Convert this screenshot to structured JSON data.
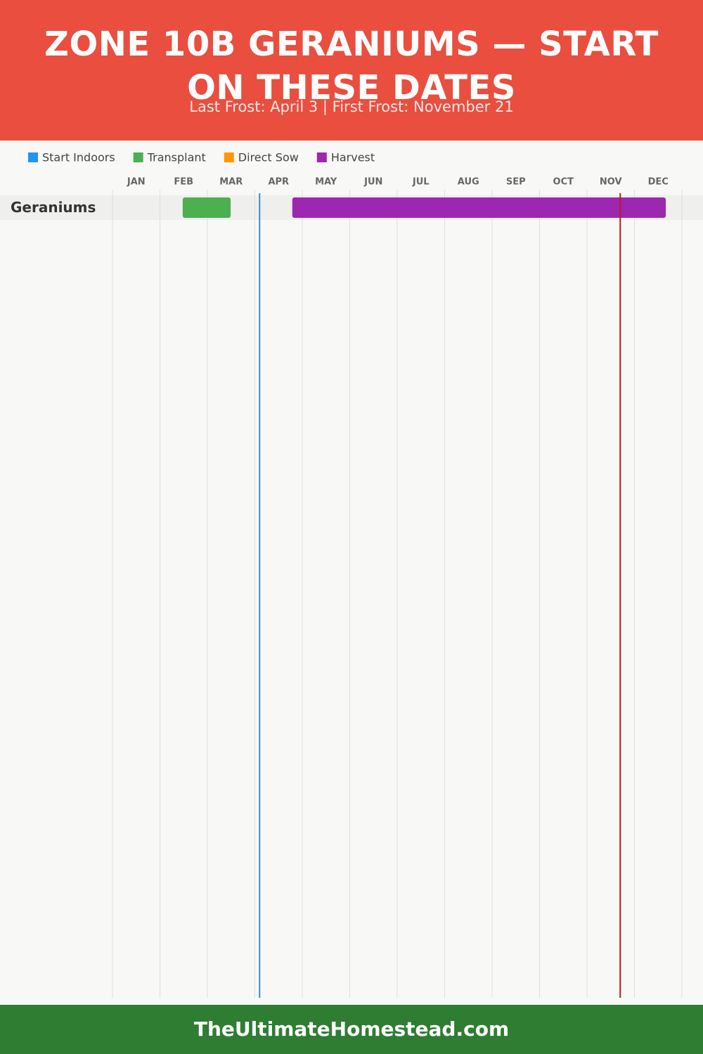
{
  "chart_data": {
    "type": "gantt",
    "title": "ZONE 10B GERANIUMS — START ON THESE DATES",
    "subtitle": "Last Frost: April 3 | First Frost: November 21",
    "categories": [
      "JAN",
      "FEB",
      "MAR",
      "APR",
      "MAY",
      "JUN",
      "JUL",
      "AUG",
      "SEP",
      "OCT",
      "NOV",
      "DEC"
    ],
    "xlim": [
      0,
      12
    ],
    "series": [
      {
        "name": "Start Indoors",
        "color": "#2196f3"
      },
      {
        "name": "Transplant",
        "color": "#4caf50"
      },
      {
        "name": "Direct Sow",
        "color": "#ff9800"
      },
      {
        "name": "Harvest",
        "color": "#9c27b0"
      }
    ],
    "rows": [
      {
        "name": "Geraniums",
        "bars": [
          {
            "series": 1,
            "start": 1.48,
            "end": 2.49
          },
          {
            "series": 3,
            "start": 3.79,
            "end": 11.66
          }
        ]
      }
    ],
    "markers": [
      {
        "value": 3.1,
        "color": "#2f8fd8"
      },
      {
        "value": 10.7,
        "color": "#b71c1c"
      }
    ],
    "footer": "TheUltimateHomestead.com"
  }
}
